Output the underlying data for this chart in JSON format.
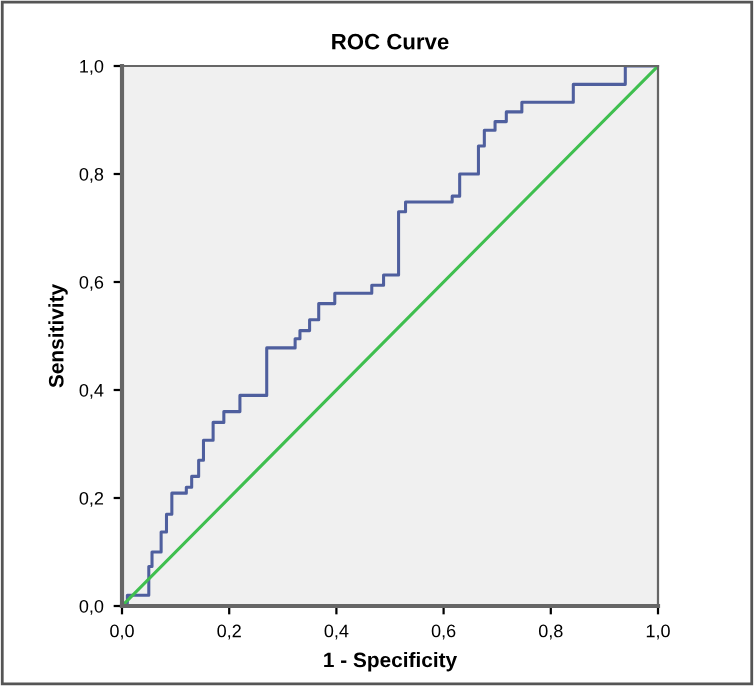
{
  "chart_data": {
    "type": "line",
    "title": "ROC Curve",
    "xlabel": "1 - Specificity",
    "ylabel": "Sensitivity",
    "xlim": [
      0,
      1
    ],
    "ylim": [
      0,
      1
    ],
    "xticks": [
      {
        "value": 0,
        "label": "0,0"
      },
      {
        "value": 0.2,
        "label": "0,2"
      },
      {
        "value": 0.4,
        "label": "0,4"
      },
      {
        "value": 0.6,
        "label": "0,6"
      },
      {
        "value": 0.8,
        "label": "0,8"
      },
      {
        "value": 1,
        "label": "1,0"
      }
    ],
    "yticks": [
      {
        "value": 0,
        "label": "0,0"
      },
      {
        "value": 0.2,
        "label": "0,2"
      },
      {
        "value": 0.4,
        "label": "0,4"
      },
      {
        "value": 0.6,
        "label": "0,6"
      },
      {
        "value": 0.8,
        "label": "0,8"
      },
      {
        "value": 1,
        "label": "1,0"
      }
    ],
    "grid": false,
    "legend": false,
    "marker": "none",
    "line_style": "solid",
    "series": [
      {
        "color": "#4f5f9e",
        "x": [
          0,
          0,
          0.01,
          0.01,
          0.05,
          0.05,
          0.056,
          0.056,
          0.073,
          0.073,
          0.083,
          0.083,
          0.093,
          0.093,
          0.12,
          0.12,
          0.13,
          0.13,
          0.143,
          0.143,
          0.152,
          0.152,
          0.17,
          0.17,
          0.19,
          0.19,
          0.22,
          0.22,
          0.27,
          0.27,
          0.323,
          0.323,
          0.332,
          0.332,
          0.35,
          0.35,
          0.367,
          0.367,
          0.397,
          0.397,
          0.466,
          0.466,
          0.488,
          0.488,
          0.516,
          0.516,
          0.529,
          0.529,
          0.616,
          0.616,
          0.63,
          0.63,
          0.665,
          0.665,
          0.676,
          0.676,
          0.696,
          0.696,
          0.717,
          0.717,
          0.746,
          0.746,
          0.842,
          0.842,
          0.939,
          0.939,
          1
        ],
        "values": [
          0,
          0.005,
          0.005,
          0.02,
          0.02,
          0.073,
          0.073,
          0.1,
          0.1,
          0.137,
          0.137,
          0.17,
          0.17,
          0.209,
          0.209,
          0.22,
          0.22,
          0.24,
          0.24,
          0.27,
          0.27,
          0.307,
          0.307,
          0.34,
          0.34,
          0.36,
          0.36,
          0.39,
          0.39,
          0.478,
          0.478,
          0.495,
          0.495,
          0.51,
          0.51,
          0.53,
          0.53,
          0.56,
          0.56,
          0.579,
          0.579,
          0.594,
          0.594,
          0.613,
          0.613,
          0.73,
          0.73,
          0.748,
          0.748,
          0.759,
          0.759,
          0.8,
          0.8,
          0.852,
          0.852,
          0.881,
          0.881,
          0.897,
          0.897,
          0.915,
          0.915,
          0.933,
          0.933,
          0.966,
          0.966,
          1,
          1
        ]
      },
      {
        "color": "#3fbf4f",
        "x": [
          0,
          1
        ],
        "values": [
          0,
          1
        ]
      }
    ]
  }
}
